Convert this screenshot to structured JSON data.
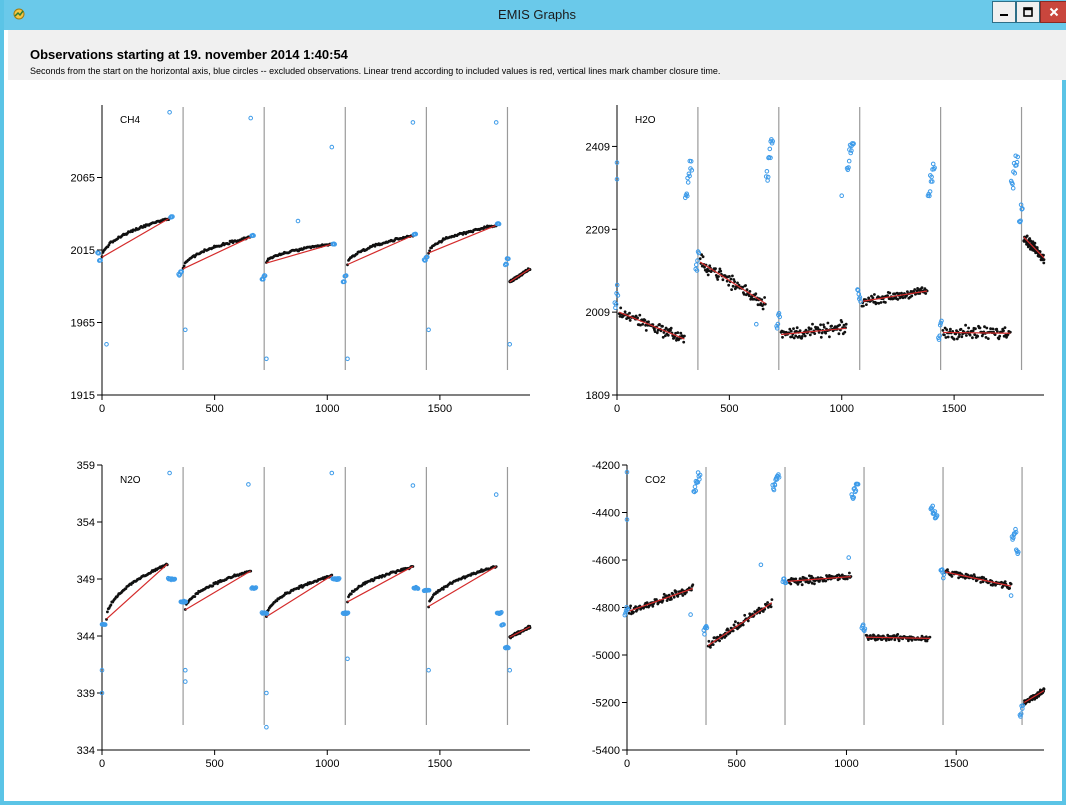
{
  "window": {
    "title": "EMIS Graphs",
    "controls": {
      "minimize": "minimize",
      "maximize": "maximize",
      "close": "close"
    }
  },
  "header": {
    "title": "Observations starting at 19. november 2014 1:40:54",
    "subtitle": "Seconds from the start on the horizontal axis, blue circles -- excluded observations. Linear trend according to included values is red, vertical lines mark chamber closure time."
  },
  "colors": {
    "included": "#111111",
    "excluded": "#3d9be9",
    "trend": "#d42b2b",
    "closure": "#9a9a9a",
    "axis": "#000000",
    "titlebar": "#6ac9ea"
  },
  "chart_data": [
    {
      "type": "scatter",
      "title": "CH4",
      "xlim": [
        0,
        1900
      ],
      "ylim": [
        1915,
        2115
      ],
      "xticks": [
        0,
        500,
        1000,
        1500
      ],
      "yticks": [
        1915,
        1965,
        2015,
        2065
      ],
      "closure_lines": [
        360,
        720,
        1080,
        1440,
        1800
      ],
      "segments": [
        {
          "x": [
            0,
            300
          ],
          "y": [
            2010,
            2037
          ],
          "shape": "sqrt",
          "lead_in": [
            2013,
            2008
          ],
          "lead_out": [
            2038
          ],
          "spikes": [
            [
              20,
              1950
            ],
            [
              300,
              2110
            ]
          ]
        },
        {
          "x": [
            360,
            660
          ],
          "y": [
            2002,
            2024
          ],
          "shape": "sqrt",
          "lead_in": [
            1998,
            2000
          ],
          "lead_out": [
            2025
          ],
          "spikes": [
            [
              370,
              1960
            ],
            [
              660,
              2106
            ]
          ]
        },
        {
          "x": [
            730,
            1020
          ],
          "y": [
            2006,
            2019
          ],
          "shape": "sqrt",
          "lead_in": [
            1995,
            1997
          ],
          "lead_out": [
            2019
          ],
          "spikes": [
            [
              730,
              1940
            ],
            [
              870,
              2035
            ],
            [
              1020,
              2086
            ]
          ]
        },
        {
          "x": [
            1090,
            1380
          ],
          "y": [
            2005,
            2025
          ],
          "shape": "sqrt",
          "lead_in": [
            1993,
            1997
          ],
          "lead_out": [
            2026
          ],
          "spikes": [
            [
              1090,
              1940
            ],
            [
              1380,
              2103
            ]
          ]
        },
        {
          "x": [
            1450,
            1750
          ],
          "y": [
            2013,
            2032
          ],
          "shape": "sqrt",
          "lead_in": [
            2008,
            2010
          ],
          "lead_out": [
            2033
          ],
          "spikes": [
            [
              1450,
              1960
            ],
            [
              1750,
              2103
            ]
          ]
        },
        {
          "x": [
            1810,
            1900
          ],
          "y": [
            1993,
            2002
          ],
          "shape": "linear",
          "lead_in": [
            2005,
            2009
          ],
          "lead_out": [],
          "spikes": [
            [
              1810,
              1950
            ]
          ]
        }
      ]
    },
    {
      "type": "scatter",
      "title": "H2O",
      "xlim": [
        0,
        1900
      ],
      "ylim": [
        1809,
        2509
      ],
      "xticks": [
        0,
        500,
        1000,
        1500
      ],
      "yticks": [
        1809,
        2009,
        2209,
        2409
      ],
      "closure_lines": [
        360,
        720,
        1080,
        1440,
        1800
      ],
      "segments": [
        {
          "x": [
            10,
            300
          ],
          "y": [
            2009,
            1944
          ],
          "shape": "linear",
          "noise": 22,
          "lead_in": [
            2030,
            2060
          ],
          "lead_out": [
            2290,
            2330,
            2360
          ],
          "spikes": [
            [
              0,
              2370
            ],
            [
              0,
              2330
            ]
          ]
        },
        {
          "x": [
            370,
            660
          ],
          "y": [
            2130,
            2030
          ],
          "shape": "linear",
          "noise": 25,
          "lead_in": [
            2120,
            2145
          ],
          "lead_out": [
            2350,
            2390,
            2420
          ],
          "spikes": [
            [
              620,
              1980
            ]
          ]
        },
        {
          "x": [
            730,
            1020
          ],
          "y": [
            1955,
            1970
          ],
          "shape": "linear",
          "noise": 22,
          "lead_in": [
            1980,
            2000
          ],
          "lead_out": [
            2360,
            2400,
            2410
          ],
          "spikes": [
            [
              1000,
              2290
            ]
          ]
        },
        {
          "x": [
            1090,
            1380
          ],
          "y": [
            2035,
            2060
          ],
          "shape": "linear",
          "noise": 15,
          "lead_in": [
            2060,
            2040
          ],
          "lead_out": [
            2290,
            2330,
            2360
          ],
          "spikes": []
        },
        {
          "x": [
            1450,
            1750
          ],
          "y": [
            1960,
            1958
          ],
          "shape": "linear",
          "noise": 25,
          "lead_in": [
            1960,
            1980
          ],
          "lead_out": [
            2320,
            2360,
            2390
          ],
          "spikes": []
        },
        {
          "x": [
            1810,
            1900
          ],
          "y": [
            2190,
            2140
          ],
          "shape": "linear",
          "noise": 18,
          "lead_in": [
            2230,
            2260
          ],
          "lead_out": [],
          "spikes": []
        }
      ]
    },
    {
      "type": "scatter",
      "title": "N2O",
      "xlim": [
        0,
        1900
      ],
      "ylim": [
        334,
        359
      ],
      "xticks": [
        0,
        500,
        1000,
        1500
      ],
      "yticks": [
        334,
        339,
        344,
        349,
        354,
        359
      ],
      "closure_lines": [
        360,
        720,
        1080,
        1440,
        1800
      ],
      "segments": [
        {
          "x": [
            20,
            290
          ],
          "y": [
            345.5,
            350.3
          ],
          "shape": "sqrt",
          "lead_in": [
            345,
            345
          ],
          "lead_out": [
            349,
            349,
            349
          ],
          "spikes": [
            [
              0,
              339
            ],
            [
              0,
              341
            ],
            [
              300,
              358.3
            ]
          ]
        },
        {
          "x": [
            370,
            660
          ],
          "y": [
            346.3,
            349.7
          ],
          "shape": "sqrt",
          "lead_in": [
            347,
            347,
            347
          ],
          "lead_out": [
            348.2,
            348.2
          ],
          "spikes": [
            [
              370,
              340
            ],
            [
              370,
              341
            ],
            [
              650,
              357.3
            ]
          ]
        },
        {
          "x": [
            730,
            1020
          ],
          "y": [
            345.7,
            349.3
          ],
          "shape": "sqrt",
          "lead_in": [
            346,
            346,
            346
          ],
          "lead_out": [
            349,
            349,
            349
          ],
          "spikes": [
            [
              730,
              336
            ],
            [
              730,
              339
            ],
            [
              1020,
              358.3
            ]
          ]
        },
        {
          "x": [
            1090,
            1380
          ],
          "y": [
            347,
            350.1
          ],
          "shape": "sqrt",
          "lead_in": [
            346,
            346,
            346
          ],
          "lead_out": [
            348.2,
            348.2
          ],
          "spikes": [
            [
              1090,
              342
            ],
            [
              1380,
              357.2
            ]
          ]
        },
        {
          "x": [
            1450,
            1750
          ],
          "y": [
            346.6,
            350.1
          ],
          "shape": "sqrt",
          "lead_in": [
            348,
            348,
            348
          ],
          "lead_out": [
            346,
            346,
            345
          ],
          "spikes": [
            [
              1450,
              341
            ],
            [
              1750,
              356.4
            ]
          ]
        },
        {
          "x": [
            1810,
            1900
          ],
          "y": [
            343.9,
            344.8
          ],
          "shape": "linear",
          "lead_in": [
            343,
            343
          ],
          "lead_out": [],
          "spikes": [
            [
              1810,
              341
            ]
          ]
        }
      ]
    },
    {
      "type": "scatter",
      "title": "CO2",
      "xlim": [
        0,
        1900
      ],
      "ylim": [
        -5400,
        -4200
      ],
      "xticks": [
        0,
        500,
        1000,
        1500
      ],
      "yticks": [
        -5400,
        -5200,
        -5000,
        -4800,
        -4600,
        -4400,
        -4200
      ],
      "closure_lines": [
        360,
        720,
        1080,
        1440,
        1800
      ],
      "segments": [
        {
          "x": [
            10,
            300
          ],
          "y": [
            -4815,
            -4720
          ],
          "shape": "linear",
          "noise": 25,
          "lead_in": [
            -4820,
            -4800
          ],
          "lead_out": [
            -4300,
            -4270,
            -4250
          ],
          "spikes": [
            [
              0,
              -4230
            ],
            [
              0,
              -4430
            ],
            [
              290,
              -4830
            ]
          ]
        },
        {
          "x": [
            370,
            660
          ],
          "y": [
            -4960,
            -4780
          ],
          "shape": "linear",
          "noise": 30,
          "lead_in": [
            -4900,
            -4870
          ],
          "lead_out": [
            -4300,
            -4270,
            -4250
          ],
          "spikes": [
            [
              610,
              -4620
            ]
          ]
        },
        {
          "x": [
            730,
            1020
          ],
          "y": [
            -4690,
            -4670
          ],
          "shape": "linear",
          "noise": 22,
          "lead_in": [
            -4680,
            -4700
          ],
          "lead_out": [
            -4340,
            -4300,
            -4280
          ],
          "spikes": [
            [
              1010,
              -4590
            ]
          ]
        },
        {
          "x": [
            1090,
            1380
          ],
          "y": [
            -4925,
            -4930
          ],
          "shape": "linear",
          "noise": 18,
          "lead_in": [
            -4880,
            -4900
          ],
          "lead_out": [
            -4380,
            -4400,
            -4420
          ],
          "spikes": []
        },
        {
          "x": [
            1450,
            1750
          ],
          "y": [
            -4650,
            -4710
          ],
          "shape": "linear",
          "noise": 22,
          "lead_in": [
            -4640,
            -4660
          ],
          "lead_out": [
            -4500,
            -4480,
            -4560
          ],
          "spikes": [
            [
              1750,
              -4750
            ]
          ]
        },
        {
          "x": [
            1810,
            1900
          ],
          "y": [
            -5200,
            -5150
          ],
          "shape": "linear",
          "noise": 15,
          "lead_in": [
            -5250,
            -5220
          ],
          "lead_out": [],
          "spikes": []
        }
      ]
    }
  ]
}
